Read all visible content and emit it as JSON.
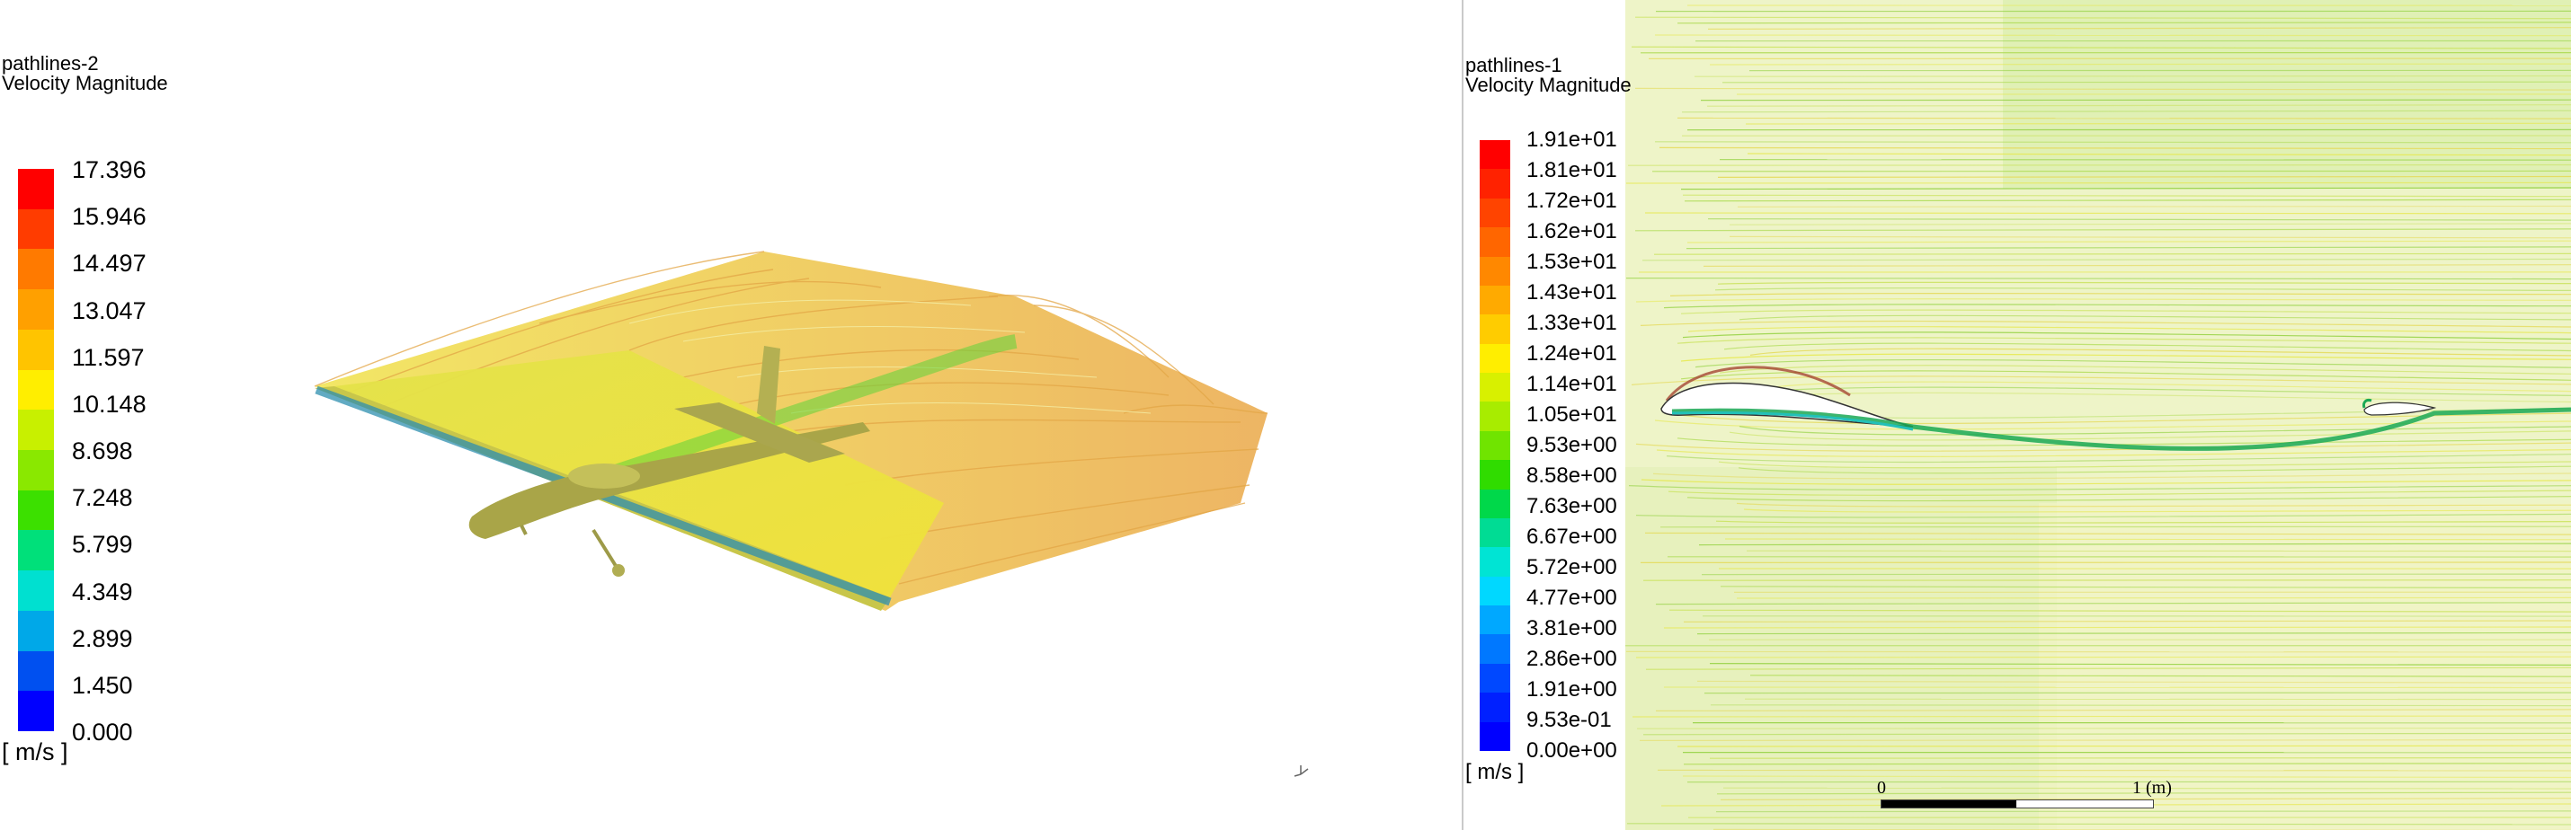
{
  "left": {
    "title_line1": "pathlines-2",
    "title_line2": "Velocity Magnitude",
    "unit": "[ m/s ]",
    "ticks": [
      "17.396",
      "15.946",
      "14.497",
      "13.047",
      "11.597",
      "10.148",
      "8.698",
      "7.248",
      "5.799",
      "4.349",
      "2.899",
      "1.450",
      "0.000"
    ],
    "colors": [
      "#ff0000",
      "#ff3c00",
      "#ff7a00",
      "#ffa000",
      "#ffc400",
      "#ffee00",
      "#c8f000",
      "#8ae800",
      "#3ce000",
      "#00e07a",
      "#00e0d0",
      "#00a8e8",
      "#0050f0",
      "#0000ff"
    ]
  },
  "right": {
    "title_line1": "pathlines-1",
    "title_line2": "Velocity Magnitude",
    "unit": "[ m/s ]",
    "ticks": [
      "1.91e+01",
      "1.81e+01",
      "1.72e+01",
      "1.62e+01",
      "1.53e+01",
      "1.43e+01",
      "1.33e+01",
      "1.24e+01",
      "1.14e+01",
      "1.05e+01",
      "9.53e+00",
      "8.58e+00",
      "7.63e+00",
      "6.67e+00",
      "5.72e+00",
      "4.77e+00",
      "3.81e+00",
      "2.86e+00",
      "1.91e+00",
      "9.53e-01",
      "0.00e+00"
    ],
    "colors": [
      "#ff0000",
      "#ff2200",
      "#ff4400",
      "#ff6600",
      "#ff8800",
      "#ffaa00",
      "#ffcc00",
      "#ffee00",
      "#d8f000",
      "#a8ec00",
      "#70e400",
      "#30dc00",
      "#00d84a",
      "#00dc94",
      "#00e4d4",
      "#00d8ff",
      "#00a8ff",
      "#0078ff",
      "#0048ff",
      "#0020ff",
      "#0000ff"
    ],
    "scale_start": "0",
    "scale_end": "1 (m)"
  },
  "colors": {
    "background": "#ffffff",
    "streamline_orange": "#e8a63c",
    "streamline_yellow": "#e6e84a",
    "streamline_green": "#8ecf3a",
    "aircraft_body": "#b9b552"
  }
}
